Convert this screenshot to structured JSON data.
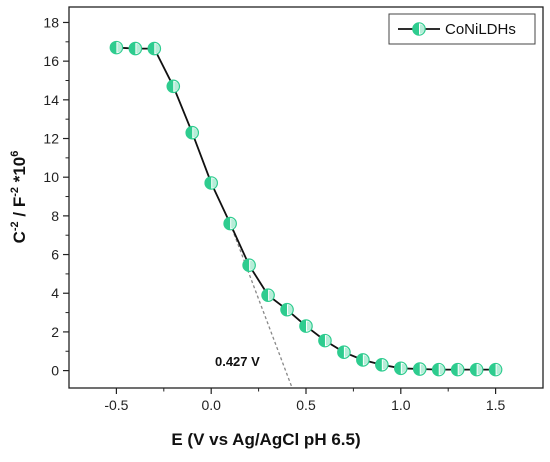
{
  "chart_data": {
    "type": "line",
    "xlabel": "E (V vs Ag/AgCl pH 6.5)",
    "ylabel_parts": {
      "c": "C",
      "c_sup": "-2",
      "sep": " / F",
      "f_sup": "-2",
      "mult": " *10",
      "exp_sup": "6"
    },
    "xlim": [
      -0.75,
      1.75
    ],
    "ylim": [
      -0.9,
      18.8
    ],
    "x_ticks": [
      -0.5,
      0.0,
      0.5,
      1.0,
      1.5
    ],
    "x_tick_labels": [
      "-0.5",
      "0.0",
      "0.5",
      "1.0",
      "1.5"
    ],
    "y_ticks": [
      0,
      2,
      4,
      6,
      8,
      10,
      12,
      14,
      16,
      18
    ],
    "y_tick_labels": [
      "0",
      "2",
      "4",
      "6",
      "8",
      "10",
      "12",
      "14",
      "16",
      "18"
    ],
    "legend_position": "top-right",
    "series": [
      {
        "name": "CoNiLDHs",
        "color": "#2ecc8f",
        "x": [
          -0.5,
          -0.4,
          -0.3,
          -0.2,
          -0.1,
          0.0,
          0.1,
          0.2,
          0.3,
          0.4,
          0.5,
          0.6,
          0.7,
          0.8,
          0.9,
          1.0,
          1.1,
          1.2,
          1.3,
          1.4,
          1.5
        ],
        "y": [
          16.7,
          16.65,
          16.65,
          14.7,
          12.3,
          9.7,
          7.6,
          5.45,
          3.9,
          3.15,
          2.3,
          1.55,
          0.95,
          0.55,
          0.3,
          0.12,
          0.08,
          0.05,
          0.05,
          0.05,
          0.05
        ]
      }
    ],
    "extrapolation_line": {
      "x": [
        0.1,
        0.427
      ],
      "y": [
        7.6,
        -0.9
      ]
    },
    "annotation": {
      "text": "0.427 V",
      "x": 0.02,
      "y": 0.25
    }
  }
}
